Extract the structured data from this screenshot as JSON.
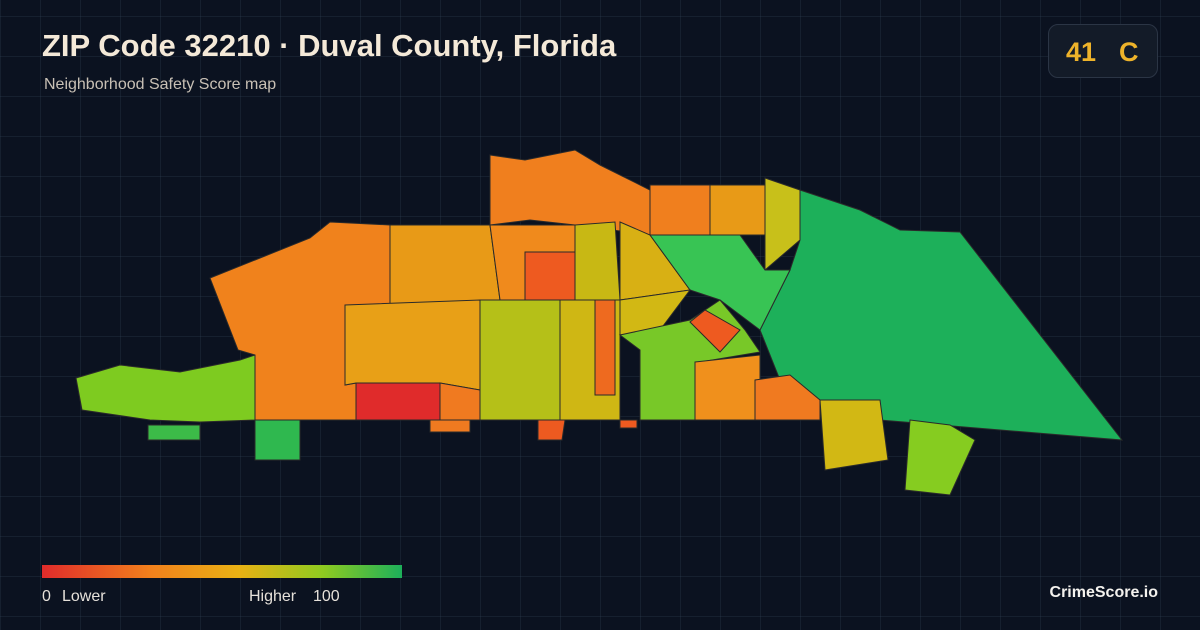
{
  "header": {
    "title": "ZIP Code 32210 · Duval County, Florida",
    "subtitle": "Neighborhood Safety Score map",
    "score": 41,
    "grade": "C"
  },
  "legend": {
    "min": 0,
    "low_label": "Lower",
    "high_label": "Higher",
    "max": 100
  },
  "footer": {
    "brand": "CrimeScore.io"
  }
}
